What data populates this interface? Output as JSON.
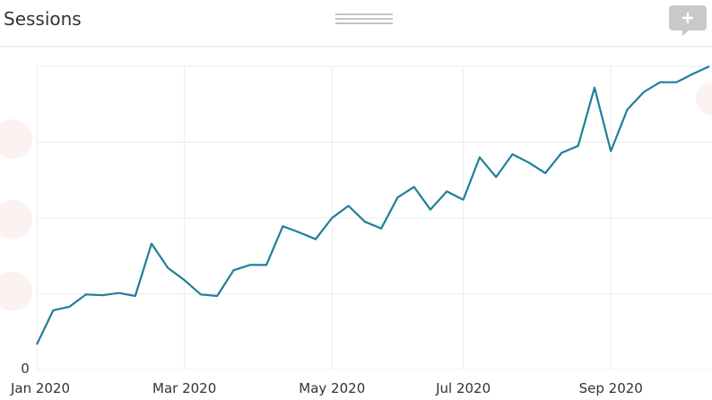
{
  "chart_data": {
    "type": "line",
    "title": "Sessions",
    "categories": [
      "Jan 2020",
      null,
      null,
      null,
      null,
      null,
      null,
      null,
      null,
      "Mar 2020",
      null,
      null,
      null,
      null,
      null,
      null,
      null,
      null,
      "May 2020",
      null,
      null,
      null,
      null,
      null,
      null,
      null,
      "Jul 2020",
      null,
      null,
      null,
      null,
      null,
      null,
      null,
      null,
      "Sep 2020",
      null,
      null,
      null,
      null,
      null,
      null
    ],
    "series": [
      {
        "name": "Sessions",
        "color": "#1f7f9a",
        "values": [
          0.33,
          0.78,
          0.83,
          0.99,
          0.98,
          1.01,
          0.97,
          1.66,
          1.34,
          1.18,
          0.99,
          0.97,
          1.31,
          1.38,
          1.38,
          1.89,
          1.81,
          1.72,
          2.0,
          2.16,
          1.95,
          1.86,
          2.27,
          2.41,
          2.11,
          2.35,
          2.24,
          2.8,
          2.54,
          2.84,
          2.73,
          2.59,
          2.86,
          2.95,
          3.72,
          2.88,
          3.43,
          3.66,
          3.79,
          3.79,
          3.9,
          4.0
        ]
      }
    ],
    "ylim": [
      0,
      4
    ],
    "yticks": [
      0,
      {
        "value": 1,
        "label": null
      },
      {
        "value": 2,
        "label": null
      },
      {
        "value": 3,
        "label": null
      },
      {
        "value": 4,
        "label": null
      }
    ],
    "grid": true
  }
}
